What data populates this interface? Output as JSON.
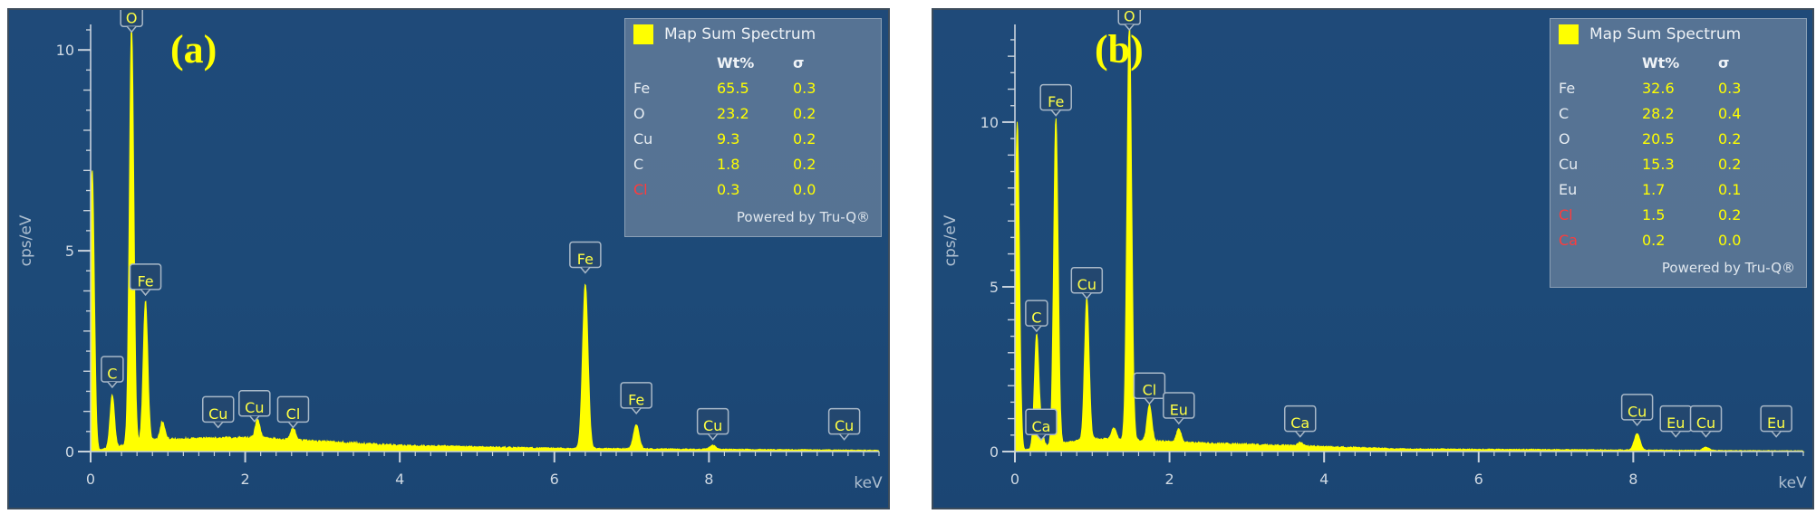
{
  "colors": {
    "spectrum": "#ffff00",
    "panel_bg": "#1d4a78",
    "axis": "#c8d2dc",
    "label_alert": "#ff3b3b"
  },
  "panels": [
    {
      "letter": "(a)",
      "legend": {
        "title": "Map Sum Spectrum",
        "col_wt": "Wt%",
        "col_sigma": "σ",
        "rows": [
          {
            "el": "Fe",
            "wt": "65.5",
            "sigma": "0.3",
            "alert": false
          },
          {
            "el": "O",
            "wt": "23.2",
            "sigma": "0.2",
            "alert": false
          },
          {
            "el": "Cu",
            "wt": "9.3",
            "sigma": "0.2",
            "alert": false
          },
          {
            "el": "C",
            "wt": "1.8",
            "sigma": "0.2",
            "alert": false
          },
          {
            "el": "Cl",
            "wt": "0.3",
            "sigma": "0.0",
            "alert": true
          }
        ],
        "footer": "Powered by Tru-Q®"
      }
    },
    {
      "letter": "(b)",
      "legend": {
        "title": "Map Sum Spectrum",
        "col_wt": "Wt%",
        "col_sigma": "σ",
        "rows": [
          {
            "el": "Fe",
            "wt": "32.6",
            "sigma": "0.3",
            "alert": false
          },
          {
            "el": "C",
            "wt": "28.2",
            "sigma": "0.4",
            "alert": false
          },
          {
            "el": "O",
            "wt": "20.5",
            "sigma": "0.2",
            "alert": false
          },
          {
            "el": "Cu",
            "wt": "15.3",
            "sigma": "0.2",
            "alert": false
          },
          {
            "el": "Eu",
            "wt": "1.7",
            "sigma": "0.1",
            "alert": false
          },
          {
            "el": "Cl",
            "wt": "1.5",
            "sigma": "0.2",
            "alert": true
          },
          {
            "el": "Ca",
            "wt": "0.2",
            "sigma": "0.0",
            "alert": true
          }
        ],
        "footer": "Powered by Tru-Q®"
      }
    }
  ],
  "chart_data": [
    {
      "type": "line",
      "title": "(a)",
      "xlabel": "keV",
      "ylabel": "cps/eV",
      "xlim": [
        0,
        10.2
      ],
      "ylim": [
        0,
        10.5
      ],
      "xticks": [
        0,
        2,
        4,
        6,
        8
      ],
      "yticks": [
        0,
        5,
        10
      ],
      "series": [
        {
          "name": "Map Sum Spectrum",
          "peaks": [
            {
              "x": 0.02,
              "y": 7.0
            },
            {
              "x": 0.28,
              "y": 1.3
            },
            {
              "x": 0.53,
              "y": 10.4
            },
            {
              "x": 0.71,
              "y": 3.5
            },
            {
              "x": 0.93,
              "y": 0.45
            },
            {
              "x": 2.16,
              "y": 0.45
            },
            {
              "x": 2.62,
              "y": 0.3
            },
            {
              "x": 6.4,
              "y": 4.1
            },
            {
              "x": 7.06,
              "y": 0.6
            },
            {
              "x": 8.05,
              "y": 0.1
            }
          ],
          "background": [
            {
              "x": 0.8,
              "y": 0.3
            },
            {
              "x": 2.0,
              "y": 0.35
            },
            {
              "x": 4.0,
              "y": 0.15
            },
            {
              "x": 6.0,
              "y": 0.08
            },
            {
              "x": 10.2,
              "y": 0.03
            }
          ]
        }
      ],
      "peak_labels": [
        {
          "text": "O",
          "x": 0.53,
          "y": 10.45
        },
        {
          "text": "Fe",
          "x": 0.71,
          "y": 3.9
        },
        {
          "text": "C",
          "x": 0.28,
          "y": 1.6
        },
        {
          "text": "Cu",
          "x": 1.65,
          "y": 0.6
        },
        {
          "text": "Cu",
          "x": 2.12,
          "y": 0.75
        },
        {
          "text": "Cl",
          "x": 2.62,
          "y": 0.6
        },
        {
          "text": "Fe",
          "x": 6.4,
          "y": 4.45
        },
        {
          "text": "Fe",
          "x": 7.06,
          "y": 0.95
        },
        {
          "text": "Cu",
          "x": 8.05,
          "y": 0.3
        },
        {
          "text": "Cu",
          "x": 9.75,
          "y": 0.3
        }
      ]
    },
    {
      "type": "line",
      "title": "(b)",
      "xlabel": "keV",
      "ylabel": "cps/eV",
      "xlim": [
        0,
        10.2
      ],
      "ylim": [
        0,
        12.8
      ],
      "xticks": [
        0,
        2,
        4,
        6,
        8
      ],
      "yticks": [
        0,
        5,
        10
      ],
      "series": [
        {
          "name": "Map Sum Spectrum",
          "peaks": [
            {
              "x": 0.03,
              "y": 10.0
            },
            {
              "x": 0.28,
              "y": 3.4
            },
            {
              "x": 0.34,
              "y": 0.55
            },
            {
              "x": 0.53,
              "y": 9.9
            },
            {
              "x": 0.93,
              "y": 4.3
            },
            {
              "x": 1.28,
              "y": 0.35
            },
            {
              "x": 1.48,
              "y": 12.7
            },
            {
              "x": 1.74,
              "y": 1.1
            },
            {
              "x": 2.12,
              "y": 0.4
            },
            {
              "x": 3.69,
              "y": 0.1
            },
            {
              "x": 8.05,
              "y": 0.5
            },
            {
              "x": 8.94,
              "y": 0.1
            }
          ],
          "background": [
            {
              "x": 1.0,
              "y": 0.4
            },
            {
              "x": 2.5,
              "y": 0.25
            },
            {
              "x": 5.0,
              "y": 0.08
            },
            {
              "x": 10.2,
              "y": 0.02
            }
          ]
        }
      ],
      "peak_labels": [
        {
          "text": "O",
          "x": 1.48,
          "y": 12.8
        },
        {
          "text": "Fe",
          "x": 0.53,
          "y": 10.2
        },
        {
          "text": "Cu",
          "x": 0.93,
          "y": 4.65
        },
        {
          "text": "C",
          "x": 0.28,
          "y": 3.65
        },
        {
          "text": "Cl",
          "x": 1.74,
          "y": 1.45
        },
        {
          "text": "Eu",
          "x": 2.12,
          "y": 0.85
        },
        {
          "text": "Ca",
          "x": 0.34,
          "y": 0.35
        },
        {
          "text": "Ca",
          "x": 3.69,
          "y": 0.45
        },
        {
          "text": "Cu",
          "x": 8.05,
          "y": 0.8
        },
        {
          "text": "Eu",
          "x": 8.55,
          "y": 0.45
        },
        {
          "text": "Cu",
          "x": 8.94,
          "y": 0.45
        },
        {
          "text": "Eu",
          "x": 9.85,
          "y": 0.45
        }
      ]
    }
  ]
}
